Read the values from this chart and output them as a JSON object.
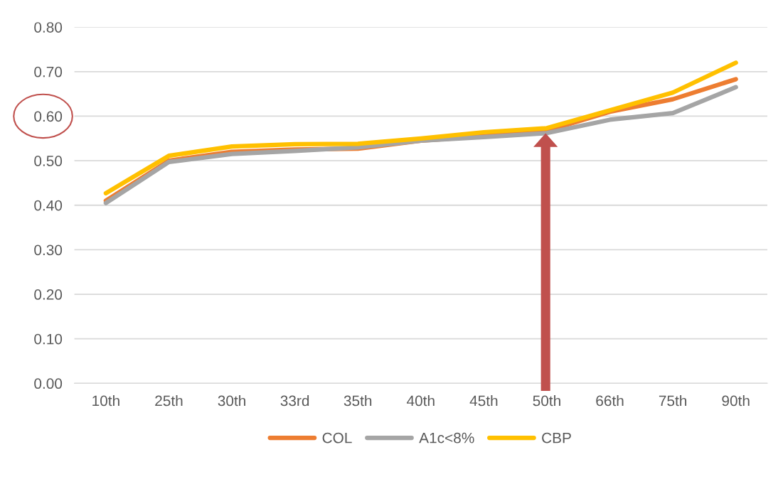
{
  "chart_data": {
    "type": "line",
    "categories": [
      "10th",
      "25th",
      "30th",
      "33rd",
      "35th",
      "40th",
      "45th",
      "50th",
      "66th",
      "75th",
      "90th"
    ],
    "series": [
      {
        "name": "COL",
        "color": "#ed7d31",
        "values": [
          0.41,
          0.5,
          0.52,
          0.525,
          0.527,
          0.545,
          0.555,
          0.567,
          0.61,
          0.638,
          0.683
        ]
      },
      {
        "name": "A1c<8%",
        "color": "#a5a5a5",
        "values": [
          0.405,
          0.497,
          0.515,
          0.522,
          0.53,
          0.545,
          0.553,
          0.562,
          0.592,
          0.607,
          0.665
        ]
      },
      {
        "name": "CBP",
        "color": "#ffc000",
        "values": [
          0.427,
          0.511,
          0.532,
          0.537,
          0.538,
          0.55,
          0.564,
          0.573,
          0.613,
          0.653,
          0.72
        ]
      }
    ],
    "ylim": [
      0,
      0.8
    ],
    "yticks": [
      {
        "value": 0,
        "label": "0.00"
      },
      {
        "value": 0.1,
        "label": "0.10"
      },
      {
        "value": 0.2,
        "label": "0.20"
      },
      {
        "value": 0.3,
        "label": "0.30"
      },
      {
        "value": 0.4,
        "label": "0.40"
      },
      {
        "value": 0.5,
        "label": "0.50"
      },
      {
        "value": 0.6,
        "label": "0.60"
      },
      {
        "value": 0.7,
        "label": "0.70"
      },
      {
        "value": 0.8,
        "label": "0.80"
      }
    ],
    "grid": "y",
    "legend": "bottom",
    "marker": "none",
    "line_style": "solid"
  }
}
